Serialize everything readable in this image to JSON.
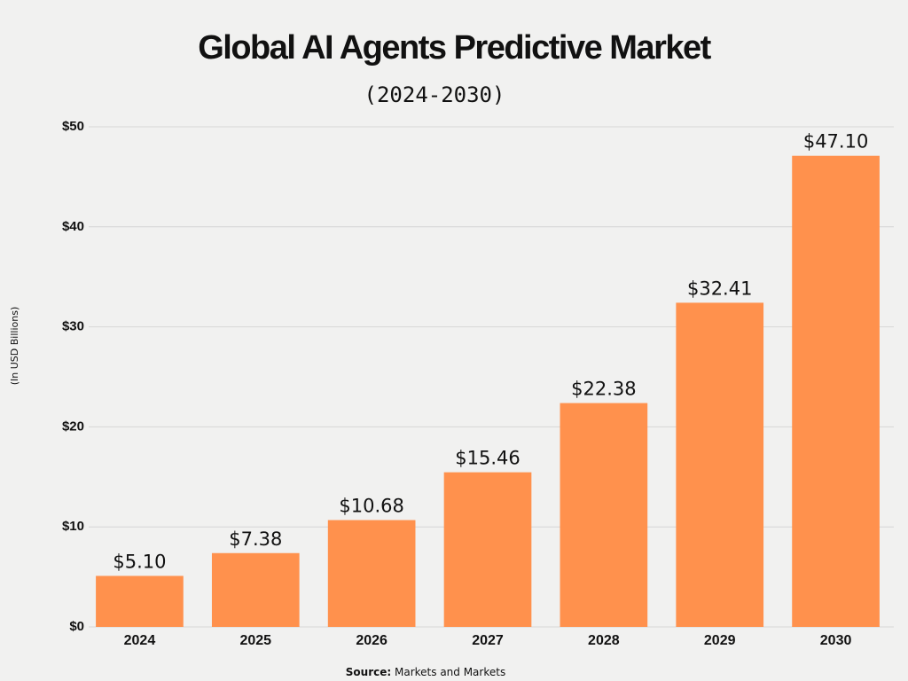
{
  "chart_data": {
    "type": "bar",
    "title": "Global AI Agents Predictive Market",
    "subtitle": "(2024-2030)",
    "y_axis_label": "(In USD Billions)",
    "source_label": "Source:",
    "source": "Markets and Markets",
    "categories": [
      "2024",
      "2025",
      "2026",
      "2027",
      "2028",
      "2029",
      "2030"
    ],
    "values": [
      5.1,
      7.38,
      10.68,
      15.46,
      22.38,
      32.41,
      47.1
    ],
    "value_labels": [
      "$5.10",
      "$7.38",
      "$10.68",
      "$15.46",
      "$22.38",
      "$32.41",
      "$47.10"
    ],
    "color": "#ff914d",
    "ylim": [
      0,
      50
    ],
    "yticks": [
      {
        "value": 0,
        "label": "$0"
      },
      {
        "value": 10,
        "label": "$10"
      },
      {
        "value": 20,
        "label": "$20"
      },
      {
        "value": 30,
        "label": "$30"
      },
      {
        "value": 40,
        "label": "$40"
      },
      {
        "value": 50,
        "label": "$50"
      }
    ],
    "grid": true
  }
}
